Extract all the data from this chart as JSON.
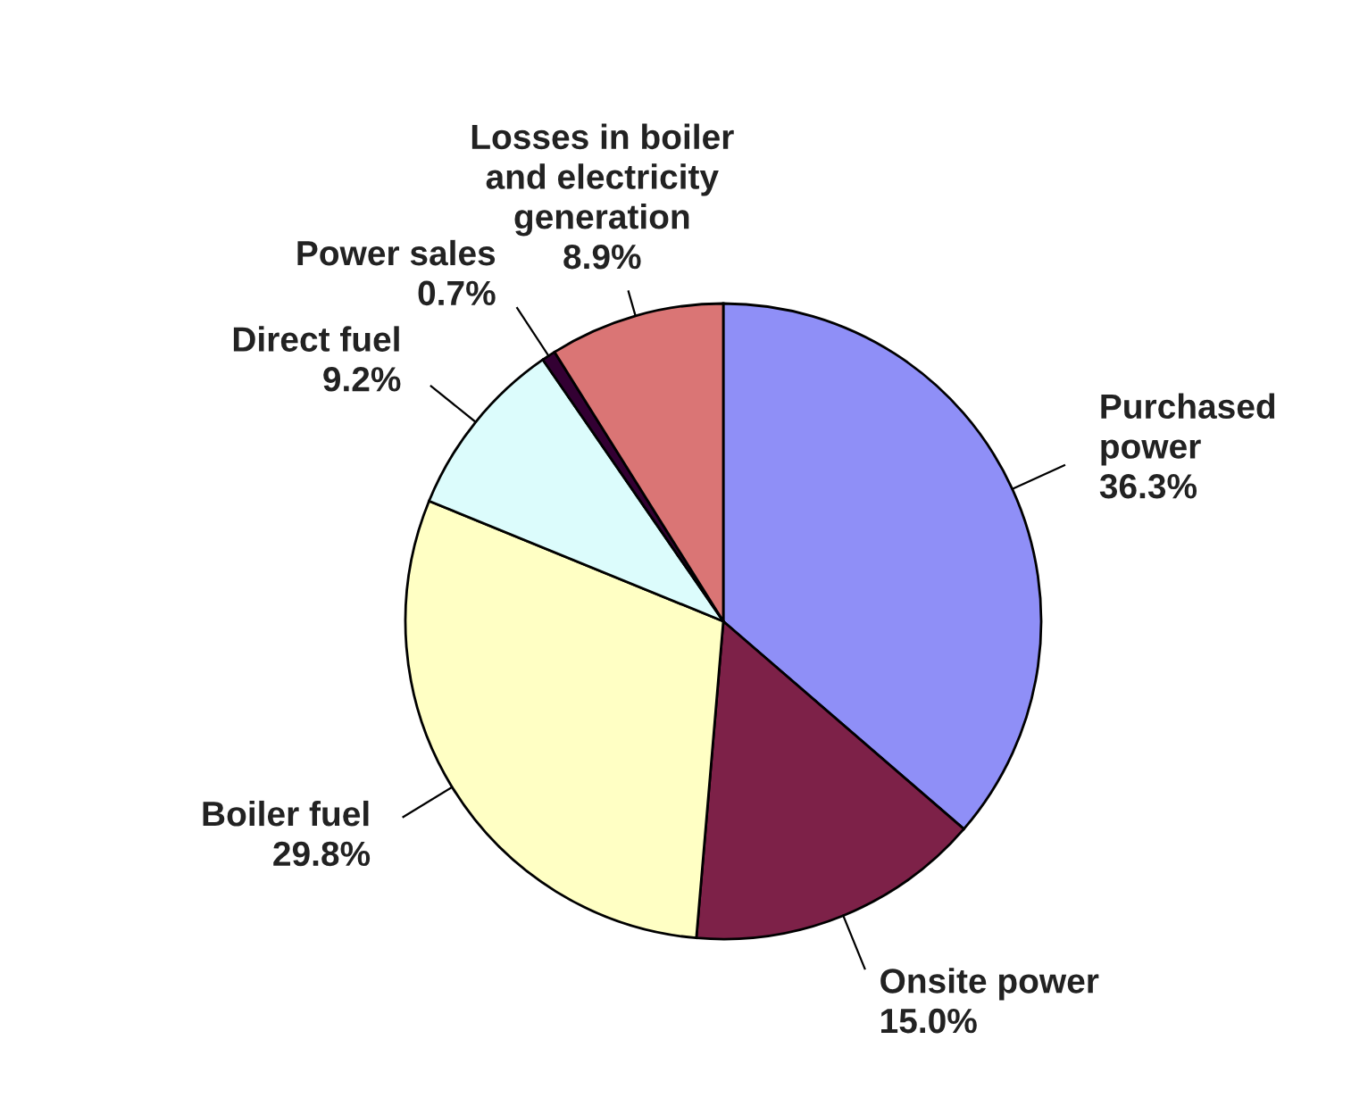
{
  "chart_data": {
    "type": "pie",
    "categories": [
      "Purchased\npower",
      "Onsite power",
      "Boiler fuel",
      "Direct fuel",
      "Power sales",
      "Losses in boiler\nand electricity\ngeneration"
    ],
    "values": [
      36.3,
      15.0,
      29.8,
      9.2,
      0.7,
      8.9
    ],
    "colors": [
      "#8f8ff7",
      "#7d2148",
      "#ffffc4",
      "#dcfcfc",
      "#330033",
      "#da7575"
    ],
    "value_labels": [
      "36.3%",
      "15.0%",
      "29.8%",
      "9.2%",
      "0.7%",
      "8.9%"
    ]
  }
}
